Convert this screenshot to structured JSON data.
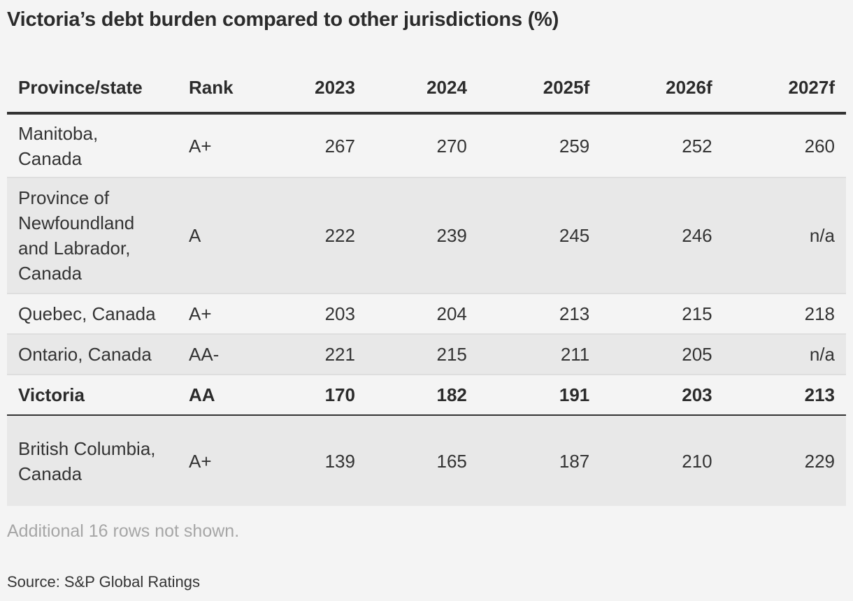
{
  "title": "Victoria’s debt burden compared to other jurisdictions (%)",
  "note": "Additional 16 rows not shown.",
  "source": "Source: S&P Global Ratings",
  "chart_data": {
    "type": "table",
    "title": "Victoria’s debt burden compared to other jurisdictions (%)",
    "columns": [
      "Province/state",
      "Rank",
      "2023",
      "2024",
      "2025f",
      "2026f",
      "2027f"
    ],
    "rows": [
      [
        "Manitoba, Canada",
        "A+",
        "267",
        "270",
        "259",
        "252",
        "260"
      ],
      [
        "Province of Newfoundland and Labrador, Canada",
        "A",
        "222",
        "239",
        "245",
        "246",
        "n/a"
      ],
      [
        "Quebec, Canada",
        "A+",
        "203",
        "204",
        "213",
        "215",
        "218"
      ],
      [
        "Ontario, Canada",
        "AA-",
        "221",
        "215",
        "211",
        "205",
        "n/a"
      ],
      [
        "Victoria",
        "AA",
        "170",
        "182",
        "191",
        "203",
        "213"
      ],
      [
        "British Columbia, Canada",
        "A+",
        "139",
        "165",
        "187",
        "210",
        "229"
      ]
    ],
    "highlight_row": "Victoria"
  }
}
